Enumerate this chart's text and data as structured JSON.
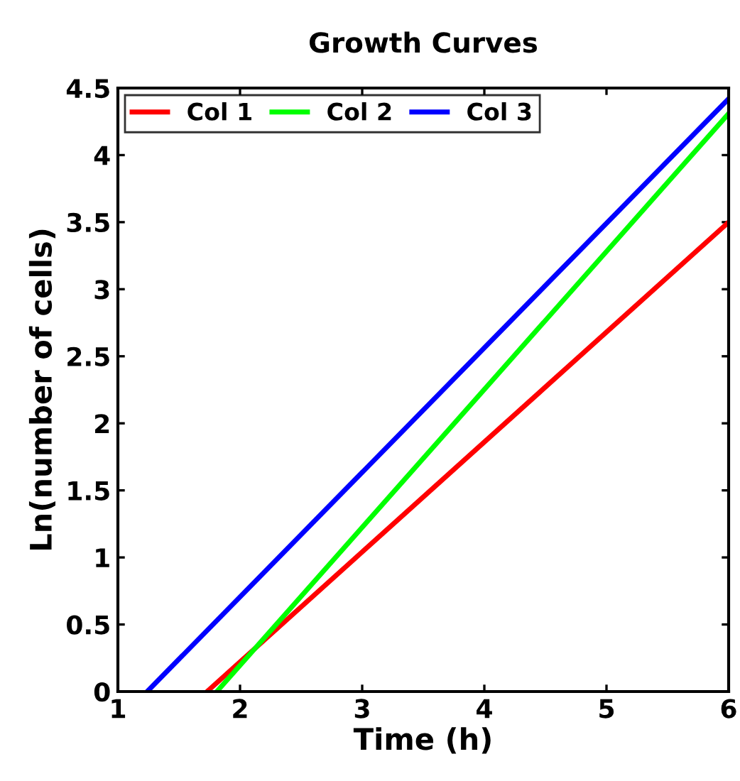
{
  "chart_data": {
    "type": "line",
    "title": "Growth Curves",
    "xlabel": "Time (h)",
    "ylabel": "Ln(number of cells)",
    "series": [
      {
        "name": "Col 1",
        "color": "#ff0000",
        "x": [
          1.73,
          6
        ],
        "values": [
          0,
          3.5
        ]
      },
      {
        "name": "Col 2",
        "color": "#00ff00",
        "x": [
          1.81,
          6
        ],
        "values": [
          0,
          4.31
        ]
      },
      {
        "name": "Col 3",
        "color": "#0000ff",
        "x": [
          1.24,
          6
        ],
        "values": [
          0,
          4.42
        ]
      }
    ],
    "xlim": [
      1,
      6
    ],
    "xticks": [
      1,
      2,
      3,
      4,
      5,
      6
    ],
    "ylim": [
      0,
      4.5
    ],
    "yticks": [
      0,
      0.5,
      1,
      1.5,
      2,
      2.5,
      3,
      3.5,
      4,
      4.5
    ],
    "grid": false,
    "legend": "top left",
    "marker": "none",
    "line_style": "solid"
  }
}
